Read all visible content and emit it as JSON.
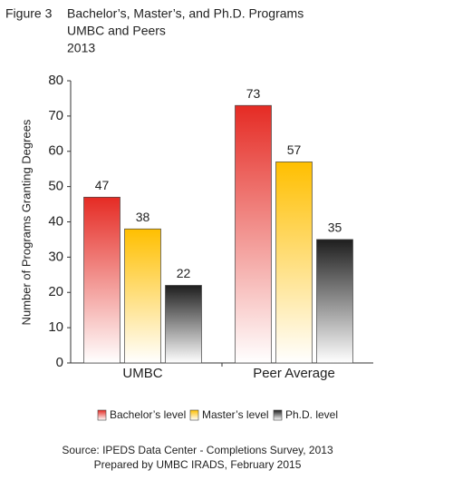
{
  "figure_label": "Figure 3",
  "chart_data": {
    "type": "bar",
    "title": "Bachelor’s, Master’s, and Ph.D. Programs",
    "subtitle": "UMBC and Peers",
    "date": "2013",
    "y_label": "Number of Programs Granting Degrees",
    "categories": [
      "UMBC",
      "Peer Average"
    ],
    "series": [
      {
        "name": "Bachelor’s level",
        "color": "#e52b24",
        "values": [
          47,
          73
        ]
      },
      {
        "name": "Master’s level",
        "color": "#ffbf00",
        "values": [
          38,
          57
        ]
      },
      {
        "name": "Ph.D. level",
        "color": "#1e1e1e",
        "values": [
          22,
          35
        ]
      }
    ],
    "ylim": [
      0,
      80
    ],
    "yticks": [
      0,
      10,
      20,
      30,
      40,
      50,
      60,
      70,
      80
    ],
    "grid": false
  },
  "source": [
    "Source: IPEDS Data Center - Completions Survey, 2013",
    "Prepared by UMBC IRADS, February 2015"
  ]
}
